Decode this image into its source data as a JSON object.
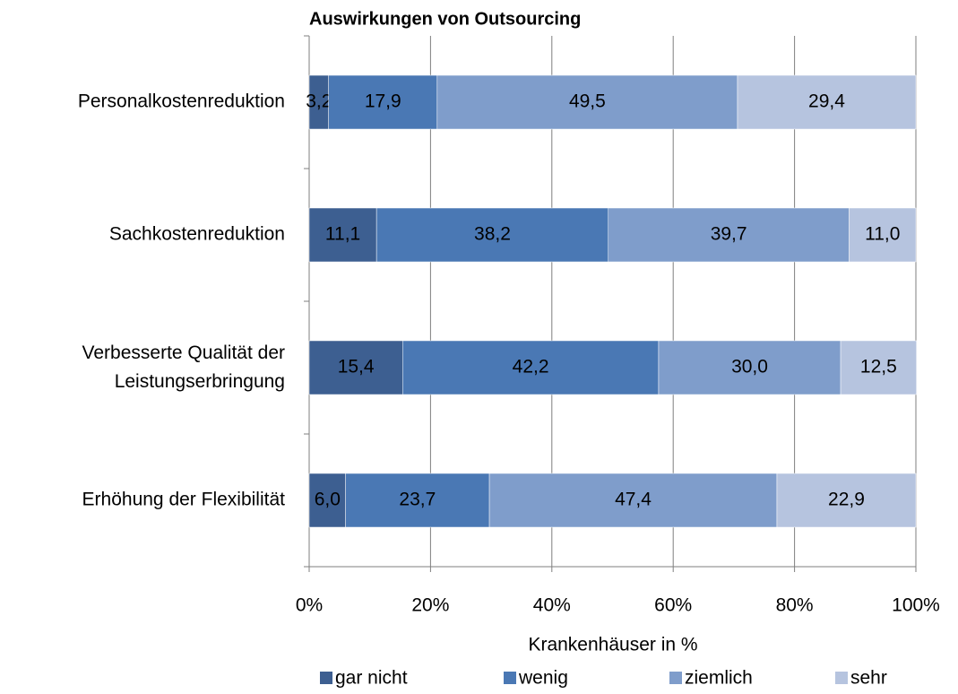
{
  "chart_data": {
    "type": "stacked_barh",
    "title": "Auswirkungen von Outsourcing",
    "x_label": "Krankenhäuser in %",
    "categories": [
      "Personalkostenreduktion",
      "Sachkostenreduktion",
      "Verbesserte Qualität der\nLeistungserbringung",
      "Erhöhung der Flexibilität"
    ],
    "series": [
      {
        "name": "gar nicht",
        "color": "#3d5f91",
        "label_color": "#ffffff",
        "values": [
          3.2,
          11.1,
          15.4,
          6.0
        ],
        "value_labels": [
          "3,2",
          "11,1",
          "15,4",
          "6,0"
        ]
      },
      {
        "name": "wenig",
        "color": "#4a78b4",
        "label_color": "#ffffff",
        "values": [
          17.9,
          38.2,
          42.2,
          23.7
        ],
        "value_labels": [
          "17,9",
          "38,2",
          "42,2",
          "23,7"
        ]
      },
      {
        "name": "ziemlich",
        "color": "#7f9dcb",
        "label_color": "#000000",
        "values": [
          49.5,
          39.7,
          30.0,
          47.4
        ],
        "value_labels": [
          "49,5",
          "39,7",
          "30,0",
          "47,4"
        ]
      },
      {
        "name": "sehr",
        "color": "#b6c4df",
        "label_color": "#000000",
        "values": [
          29.4,
          11.0,
          12.5,
          22.9
        ],
        "value_labels": [
          "29,4",
          "11,0",
          "12,5",
          "22,9"
        ]
      }
    ],
    "xlim": [
      0,
      100
    ],
    "xticks": [
      {
        "value": 0,
        "label": "0%"
      },
      {
        "value": 20,
        "label": "20%"
      },
      {
        "value": 40,
        "label": "40%"
      },
      {
        "value": 60,
        "label": "60%"
      },
      {
        "value": 80,
        "label": "80%"
      },
      {
        "value": 100,
        "label": "100%"
      }
    ],
    "grid": true,
    "legend": "bottom"
  }
}
